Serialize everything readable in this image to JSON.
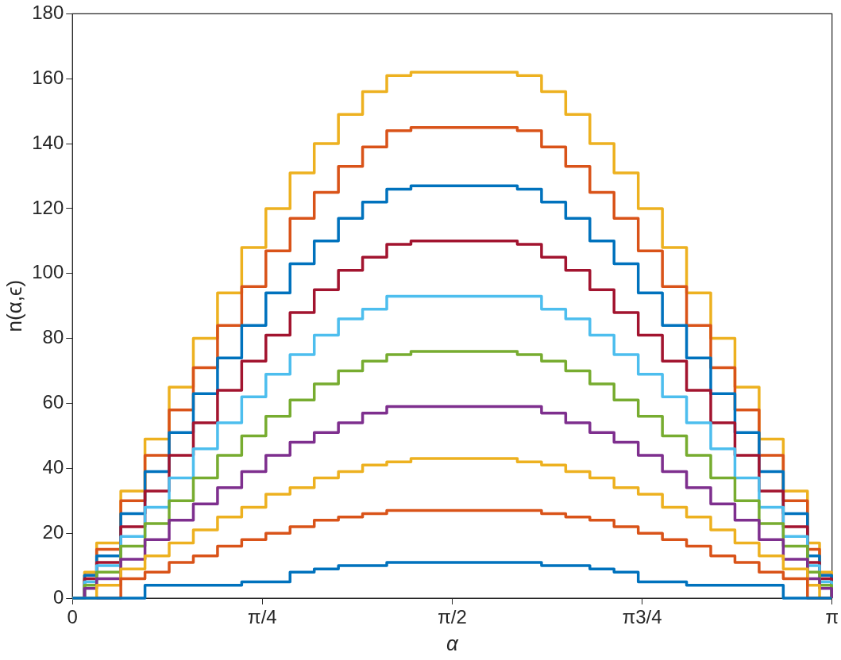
{
  "chart_data": {
    "type": "step",
    "xlabel": "α",
    "ylabel": "n(α,ϵ)",
    "x": [
      0,
      0.05,
      0.1,
      0.2,
      0.3,
      0.4,
      0.5,
      0.6,
      0.7,
      0.8,
      0.9,
      1.0,
      1.1,
      1.2,
      1.3,
      1.4,
      1.5,
      1.57,
      1.64,
      1.74,
      1.84,
      1.94,
      2.04,
      2.14,
      2.24,
      2.34,
      2.44,
      2.54,
      2.64,
      2.74,
      2.84,
      2.94,
      3.04,
      3.09,
      3.14
    ],
    "xlim": [
      0,
      3.1416
    ],
    "xticks": [
      0,
      {
        "value": 0.7854,
        "label": "π/4"
      },
      {
        "value": 1.5708,
        "label": "π/2"
      },
      {
        "value": 2.3562,
        "label": "π3/4"
      },
      {
        "value": 3.1416,
        "label": "π"
      }
    ],
    "ylim": [
      0,
      180
    ],
    "yticks": [
      0,
      20,
      40,
      60,
      80,
      100,
      120,
      140,
      160,
      180
    ],
    "grid": false,
    "legend": false,
    "line_style": "solid",
    "marker": "none",
    "series": [
      {
        "color": "#0072bd",
        "values": [
          0,
          0,
          0,
          0,
          4,
          4,
          4,
          4,
          5,
          5,
          8,
          9,
          10,
          10,
          11,
          11,
          11,
          11,
          11,
          11,
          11,
          10,
          10,
          9,
          8,
          5,
          5,
          4,
          4,
          4,
          4,
          0,
          0,
          0,
          0
        ]
      },
      {
        "color": "#d95319",
        "values": [
          null,
          null,
          0,
          6,
          8,
          11,
          13,
          16,
          18,
          20,
          22,
          24,
          25,
          26,
          27,
          27,
          27,
          27,
          27,
          27,
          27,
          26,
          25,
          24,
          22,
          20,
          18,
          16,
          13,
          11,
          8,
          6,
          0,
          0,
          0
        ]
      },
      {
        "color": "#edb120",
        "values": [
          0,
          0,
          4,
          9,
          13,
          17,
          21,
          25,
          28,
          32,
          34,
          37,
          39,
          41,
          42,
          43,
          43,
          43,
          43,
          43,
          42,
          41,
          39,
          37,
          34,
          32,
          28,
          25,
          21,
          17,
          13,
          9,
          4,
          0,
          0
        ]
      },
      {
        "color": "#7e2f8e",
        "values": [
          0,
          3,
          6,
          12,
          18,
          24,
          29,
          34,
          39,
          44,
          48,
          51,
          54,
          57,
          59,
          59,
          59,
          59,
          59,
          59,
          59,
          57,
          54,
          51,
          48,
          44,
          39,
          34,
          29,
          24,
          18,
          12,
          6,
          3,
          0
        ]
      },
      {
        "color": "#77ac30",
        "values": [
          0,
          4,
          8,
          16,
          23,
          30,
          37,
          44,
          50,
          56,
          61,
          66,
          70,
          73,
          75,
          76,
          76,
          76,
          76,
          76,
          75,
          73,
          70,
          66,
          61,
          56,
          50,
          44,
          37,
          30,
          23,
          16,
          8,
          4,
          0
        ]
      },
      {
        "color": "#4dbeee",
        "values": [
          0,
          5,
          10,
          19,
          28,
          37,
          46,
          54,
          62,
          69,
          75,
          81,
          86,
          89,
          93,
          93,
          93,
          93,
          93,
          93,
          93,
          89,
          86,
          81,
          75,
          69,
          62,
          54,
          46,
          37,
          28,
          19,
          10,
          5,
          0
        ]
      },
      {
        "color": "#a2142f",
        "values": [
          0,
          6,
          11,
          22,
          33,
          44,
          54,
          64,
          73,
          81,
          88,
          95,
          101,
          105,
          109,
          110,
          110,
          110,
          110,
          110,
          109,
          105,
          101,
          95,
          88,
          81,
          73,
          64,
          54,
          44,
          33,
          22,
          11,
          6,
          0
        ]
      },
      {
        "color": "#0072bd",
        "values": [
          0,
          7,
          13,
          26,
          39,
          51,
          63,
          74,
          84,
          94,
          103,
          110,
          117,
          122,
          126,
          127,
          127,
          127,
          127,
          127,
          126,
          122,
          117,
          110,
          103,
          94,
          84,
          74,
          63,
          51,
          39,
          26,
          13,
          7,
          0
        ]
      },
      {
        "color": "#d95319",
        "values": [
          0,
          7,
          15,
          30,
          44,
          58,
          71,
          84,
          96,
          107,
          117,
          125,
          133,
          139,
          144,
          145,
          145,
          145,
          145,
          145,
          144,
          139,
          133,
          125,
          117,
          107,
          96,
          84,
          71,
          58,
          44,
          30,
          15,
          7,
          0
        ]
      },
      {
        "color": "#edb120",
        "values": [
          0,
          8,
          17,
          33,
          49,
          65,
          80,
          94,
          108,
          120,
          131,
          140,
          149,
          156,
          161,
          162,
          162,
          162,
          162,
          162,
          161,
          156,
          149,
          140,
          131,
          120,
          108,
          94,
          80,
          65,
          49,
          33,
          17,
          8,
          0
        ]
      }
    ]
  }
}
